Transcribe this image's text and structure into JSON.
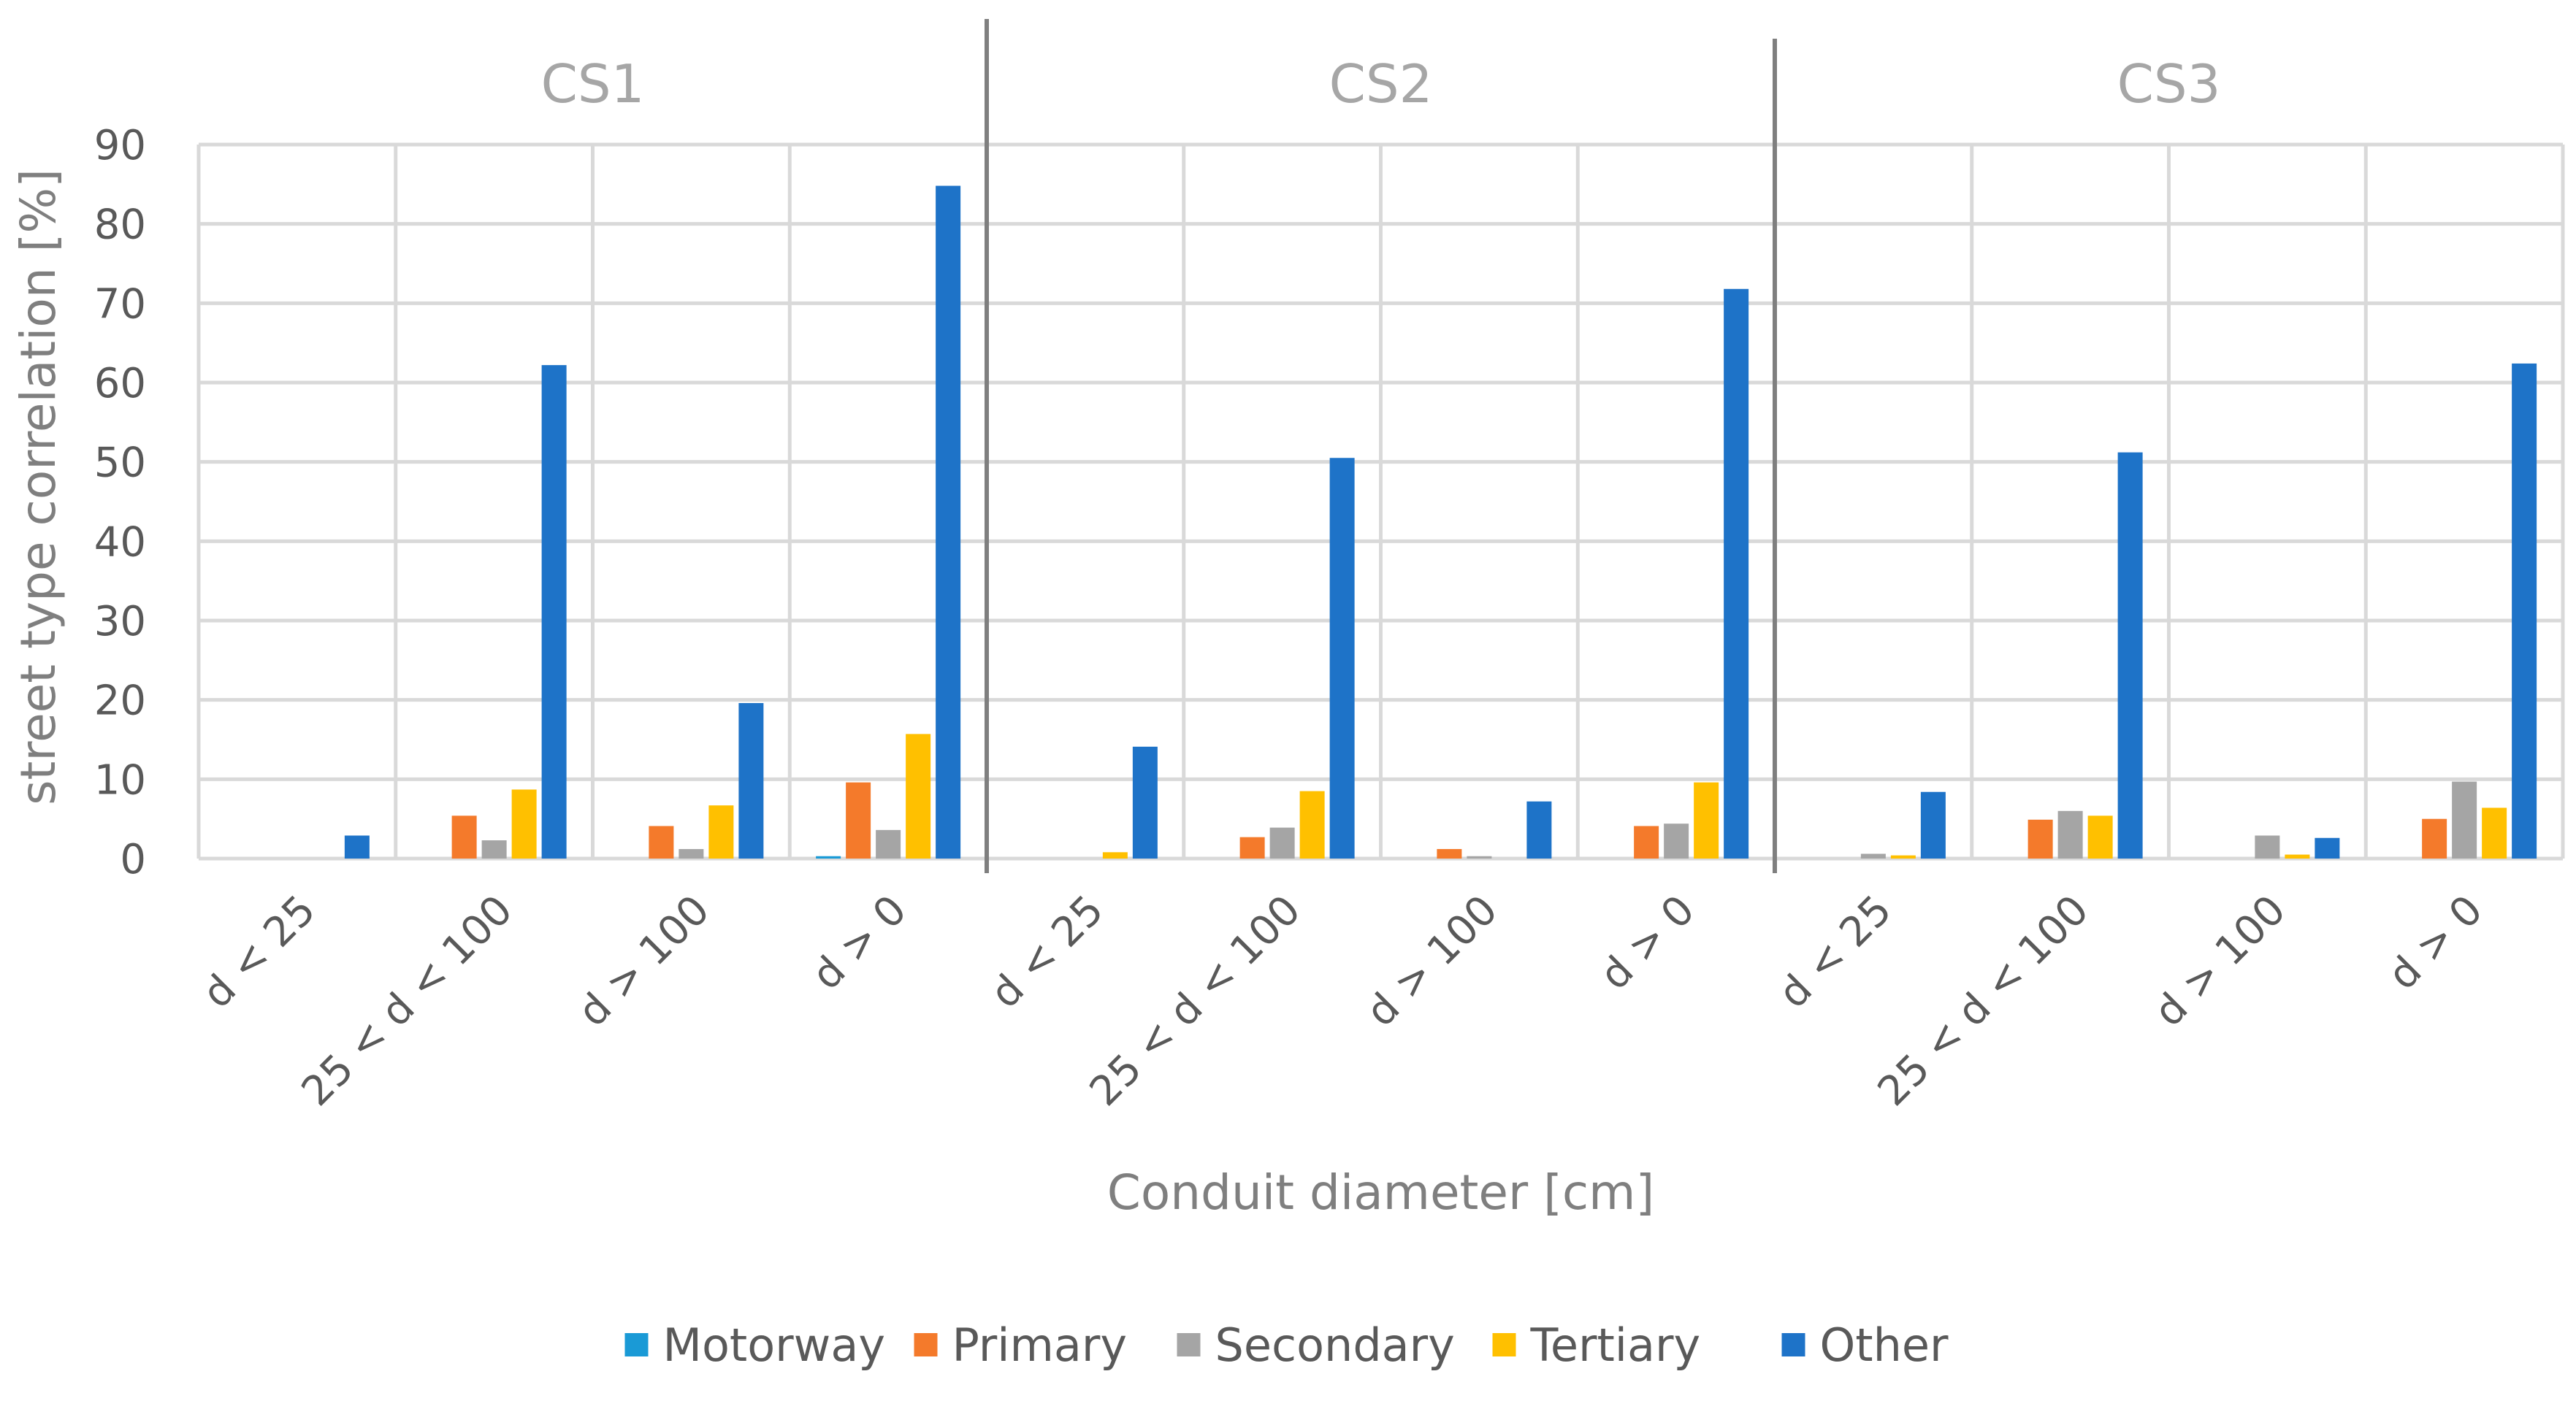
{
  "chart_data": {
    "type": "bar",
    "groups": [
      "CS1",
      "CS2",
      "CS3"
    ],
    "categories": [
      "d < 25",
      "25 < d < 100",
      "d > 100",
      "d > 0"
    ],
    "xlabel": "Conduit diameter [cm]",
    "ylabel": "street type correlation [%]",
    "ylim": [
      0,
      90
    ],
    "yticks": [
      "0",
      "10",
      "20",
      "30",
      "40",
      "50",
      "60",
      "70",
      "80",
      "90"
    ],
    "grid": true,
    "legend_position": "bottom",
    "series": [
      {
        "name": "Motorway",
        "color": "#1a9ad6",
        "values": [
          [
            0,
            0,
            0,
            0.3
          ],
          [
            0,
            0,
            0,
            0
          ],
          [
            0,
            0,
            0,
            0
          ]
        ]
      },
      {
        "name": "Primary",
        "color": "#f47a2b",
        "values": [
          [
            0,
            5.4,
            4.1,
            9.6
          ],
          [
            0,
            2.7,
            1.2,
            4.1
          ],
          [
            0,
            4.9,
            0,
            5.0
          ]
        ]
      },
      {
        "name": "Secondary",
        "color": "#a5a5a5",
        "values": [
          [
            0,
            2.3,
            1.2,
            3.6
          ],
          [
            0,
            3.9,
            0.3,
            4.4
          ],
          [
            0.6,
            6.0,
            2.9,
            9.7
          ]
        ]
      },
      {
        "name": "Tertiary",
        "color": "#ffc000",
        "values": [
          [
            0,
            8.7,
            6.7,
            15.7
          ],
          [
            0.8,
            8.5,
            0,
            9.6
          ],
          [
            0.4,
            5.4,
            0.5,
            6.4
          ]
        ]
      },
      {
        "name": "Other",
        "color": "#1e73c8",
        "values": [
          [
            2.9,
            62.2,
            19.6,
            84.8
          ],
          [
            14.1,
            50.5,
            7.2,
            71.8
          ],
          [
            8.4,
            51.2,
            2.6,
            62.4
          ]
        ]
      }
    ]
  }
}
